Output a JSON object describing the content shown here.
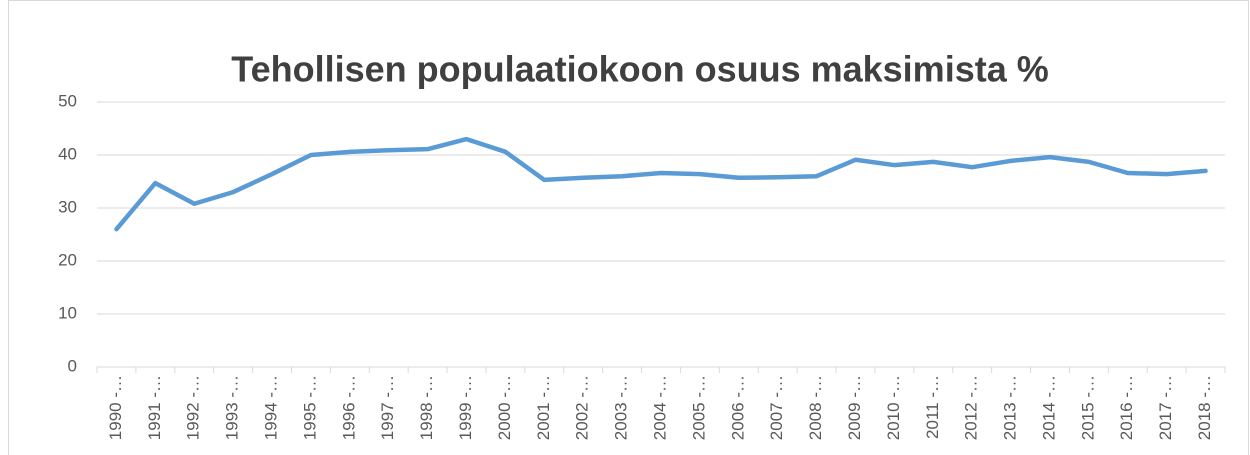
{
  "chart_data": {
    "type": "line",
    "title": "Tehollisen populaatiokoon osuus maksimista %",
    "categories": [
      "1990 -…",
      "1991 -…",
      "1992 -…",
      "1993 -…",
      "1994 -…",
      "1995 -…",
      "1996 -…",
      "1997 -…",
      "1998 -…",
      "1999 -…",
      "2000 -…",
      "2001 -…",
      "2002 -…",
      "2003 -…",
      "2004 -…",
      "2005 -…",
      "2006 -…",
      "2007 -…",
      "2008 -…",
      "2009 -…",
      "2010 -…",
      "2011 -…",
      "2012 -…",
      "2013 -…",
      "2014 -…",
      "2015 -…",
      "2016 -…",
      "2017 -…",
      "2018 -…"
    ],
    "series": [
      {
        "color": "#5b9bd5",
        "values": [
          26.0,
          34.7,
          30.8,
          33.0,
          36.4,
          40.0,
          40.6,
          40.9,
          41.1,
          43.0,
          40.6,
          35.3,
          35.7,
          36.0,
          36.6,
          36.4,
          35.7,
          35.8,
          36.0,
          39.1,
          38.1,
          38.7,
          37.7,
          38.9,
          39.6,
          38.7,
          36.6,
          36.4,
          37.0
        ]
      }
    ],
    "ylim": [
      0,
      50
    ],
    "yticks": [
      0,
      10,
      20,
      30,
      40,
      50
    ],
    "grid": true
  }
}
